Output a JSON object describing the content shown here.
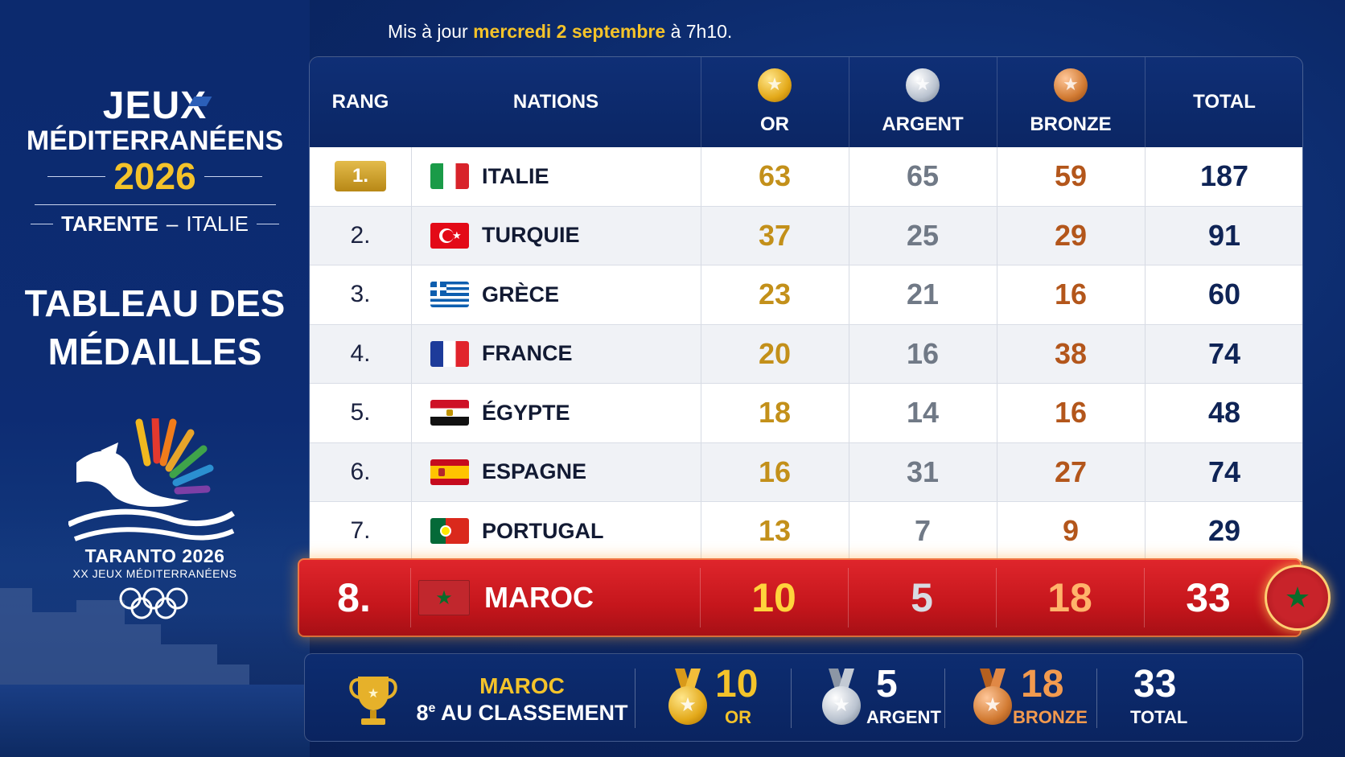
{
  "update": {
    "prefix": "Mis à jour",
    "date": "mercredi 2 septembre",
    "suffix": "à 7h10."
  },
  "event": {
    "title_line1": "JEUX",
    "title_line2": "MÉDITERRANÉENS",
    "year": "2026",
    "city": "TARENTE",
    "dash": "–",
    "country": "ITALIE",
    "board_title_line1": "TABLEAU DES",
    "board_title_line2": "MÉDAILLES",
    "logo_line1": "TARANTO 2026",
    "logo_line2": "XX JEUX MÉDITERRANÉENS"
  },
  "table": {
    "headers": {
      "rank": "RANG",
      "nations": "NATIONS",
      "gold": "OR",
      "silver": "ARGENT",
      "bronze": "BRONZE",
      "total": "TOTAL"
    },
    "rows": [
      {
        "rank": "1.",
        "nation": "ITALIE",
        "flag": "italy",
        "gold": "63",
        "silver": "65",
        "bronze": "59",
        "total": "187"
      },
      {
        "rank": "2.",
        "nation": "TURQUIE",
        "flag": "turkey",
        "gold": "37",
        "silver": "25",
        "bronze": "29",
        "total": "91"
      },
      {
        "rank": "3.",
        "nation": "GRÈCE",
        "flag": "greece",
        "gold": "23",
        "silver": "21",
        "bronze": "16",
        "total": "60"
      },
      {
        "rank": "4.",
        "nation": "FRANCE",
        "flag": "france",
        "gold": "20",
        "silver": "16",
        "bronze": "38",
        "total": "74"
      },
      {
        "rank": "5.",
        "nation": "ÉGYPTE",
        "flag": "egypt",
        "gold": "18",
        "silver": "14",
        "bronze": "16",
        "total": "48"
      },
      {
        "rank": "6.",
        "nation": "ESPAGNE",
        "flag": "spain",
        "gold": "16",
        "silver": "31",
        "bronze": "27",
        "total": "74"
      },
      {
        "rank": "7.",
        "nation": "PORTUGAL",
        "flag": "portugal",
        "gold": "13",
        "silver": "7",
        "bronze": "9",
        "total": "29"
      }
    ],
    "highlight": {
      "rank": "8.",
      "nation": "MAROC",
      "flag": "morocco",
      "gold": "10",
      "silver": "5",
      "bronze": "18",
      "total": "33"
    }
  },
  "summary": {
    "nation": "MAROC",
    "rank_num": "8",
    "rank_sup": "e",
    "rank_text": "AU CLASSEMENT",
    "gold": "10",
    "gold_label": "OR",
    "silver": "5",
    "silver_label": "ARGENT",
    "bronze": "18",
    "bronze_label": "BRONZE",
    "total": "33",
    "total_label": "TOTAL"
  },
  "colors": {
    "gold": "#c3901a",
    "silver": "#707986",
    "bronze": "#b3561b",
    "highlight_red": "#d41f25",
    "accent_yellow": "#f4c32a",
    "navy": "#0b2766"
  },
  "icons": [
    "gold-medal-icon",
    "silver-medal-icon",
    "bronze-medal-icon",
    "trophy-icon",
    "olympic-rings-icon",
    "morocco-round-flag-icon"
  ]
}
